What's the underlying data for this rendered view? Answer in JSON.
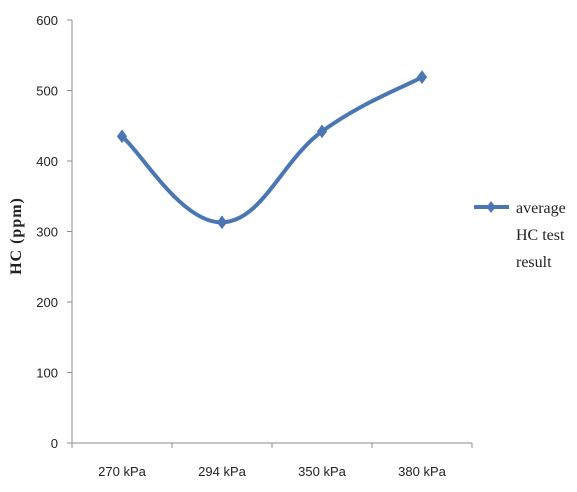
{
  "chart_data": {
    "type": "line",
    "title": "",
    "xlabel": "",
    "ylabel": "HC (ppm)",
    "categories": [
      "270 kPa",
      "294 kPa",
      "350 kPa",
      "380 kPa"
    ],
    "series": [
      {
        "name": "average HC test result",
        "legend_lines": [
          "average",
          "HC test",
          "result"
        ],
        "values": [
          435,
          313,
          442,
          519
        ],
        "color": "#4a77b4",
        "marker": "diamond"
      }
    ],
    "ylim": [
      0,
      600
    ],
    "yticks": [
      "0",
      "100",
      "200",
      "300",
      "400",
      "500",
      "600"
    ],
    "grid": false,
    "smooth": true,
    "legend_position": "right"
  }
}
